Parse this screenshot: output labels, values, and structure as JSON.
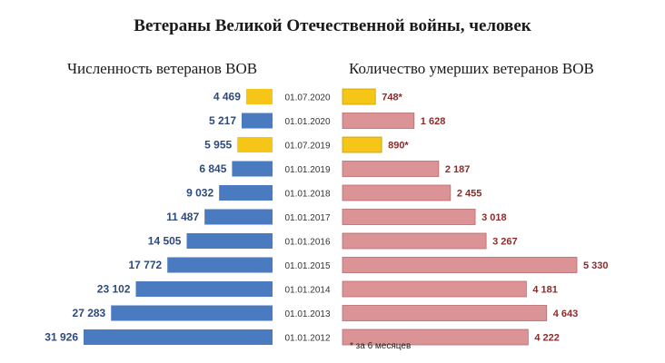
{
  "title": "Ветераны Великой Отечественной войны, человек",
  "footnote": "* за 6 месяцев",
  "chart_data": {
    "type": "bar",
    "categories": [
      "01.07.2020",
      "01.01.2020",
      "01.07.2019",
      "01.01.2019",
      "01.01.2018",
      "01.01.2017",
      "01.01.2016",
      "01.01.2015",
      "01.01.2014",
      "01.01.2013",
      "01.01.2012"
    ],
    "series": [
      {
        "name": "Численность ветеранов ВОВ",
        "values": [
          4469,
          5217,
          5955,
          6845,
          9032,
          11487,
          14505,
          17772,
          23102,
          27283,
          31926
        ],
        "labels": [
          "4 469",
          "5 217",
          "5 955",
          "6 845",
          "9 032",
          "11 487",
          "14 505",
          "17 772",
          "23 102",
          "27 283",
          "31 926"
        ],
        "highlight": [
          true,
          false,
          true,
          false,
          false,
          false,
          false,
          false,
          false,
          false,
          false
        ]
      },
      {
        "name": "Количество умерших ветеранов ВОВ",
        "values": [
          748,
          1628,
          890,
          2187,
          2455,
          3018,
          3267,
          5330,
          4181,
          4643,
          4222
        ],
        "labels": [
          "748*",
          "1 628",
          "890*",
          "2 187",
          "2 455",
          "3 018",
          "3 267",
          "5 330",
          "4 181",
          "4 643",
          "4 222"
        ],
        "highlight": [
          true,
          false,
          true,
          false,
          false,
          false,
          false,
          false,
          false,
          false,
          false
        ]
      }
    ],
    "colors": {
      "left_bar": "#4a7ac0",
      "right_bar": "#dc9396",
      "highlight_bar": "#f5c518"
    }
  }
}
